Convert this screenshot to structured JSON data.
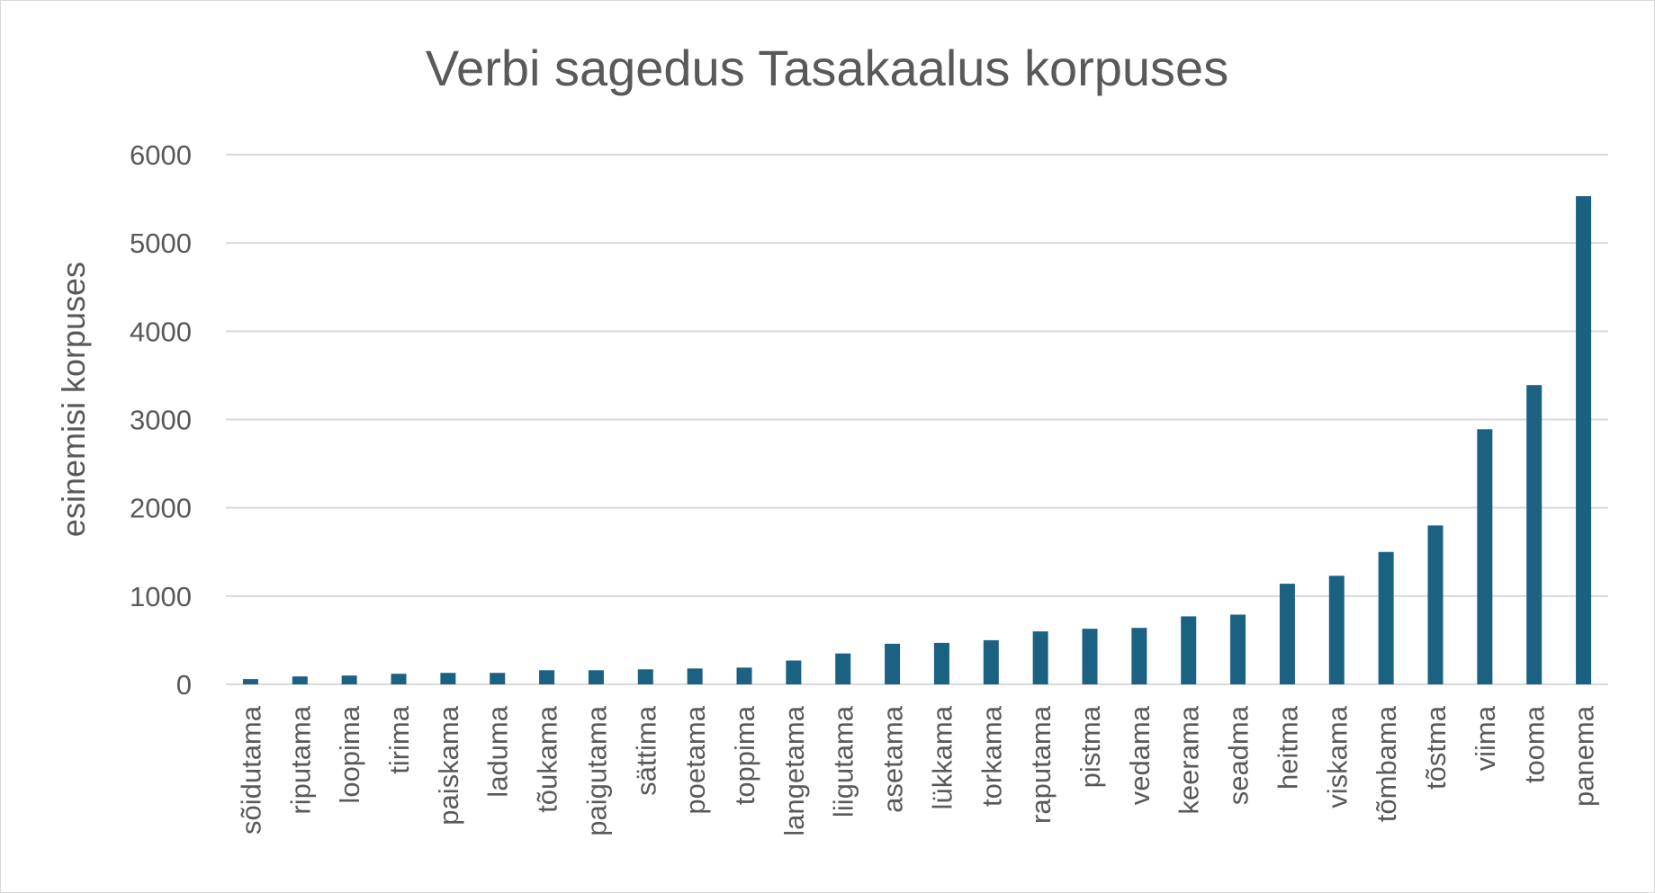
{
  "chart_data": {
    "type": "bar",
    "title": "Verbi sagedus Tasakaalus korpuses",
    "xlabel": "",
    "ylabel": "esinemisi korpuses",
    "ylim": [
      0,
      6000
    ],
    "yticks": [
      0,
      1000,
      2000,
      3000,
      4000,
      5000,
      6000
    ],
    "grid": true,
    "legend": "none",
    "bar_color": "#1b6182",
    "categories": [
      "sõidutama",
      "riputama",
      "loopima",
      "tirima",
      "paiskama",
      "laduma",
      "tõukama",
      "paigutama",
      "sättima",
      "poetama",
      "toppima",
      "langetama",
      "liigutama",
      "asetama",
      "lükkama",
      "torkama",
      "raputama",
      "pistma",
      "vedama",
      "keerama",
      "seadma",
      "heitma",
      "viskama",
      "tõmbama",
      "tõstma",
      "viima",
      "tooma",
      "panema"
    ],
    "values": [
      60,
      90,
      100,
      120,
      130,
      130,
      160,
      160,
      170,
      180,
      190,
      270,
      350,
      460,
      470,
      500,
      600,
      630,
      640,
      770,
      790,
      1140,
      1230,
      1500,
      1800,
      2890,
      3390,
      5530
    ]
  }
}
